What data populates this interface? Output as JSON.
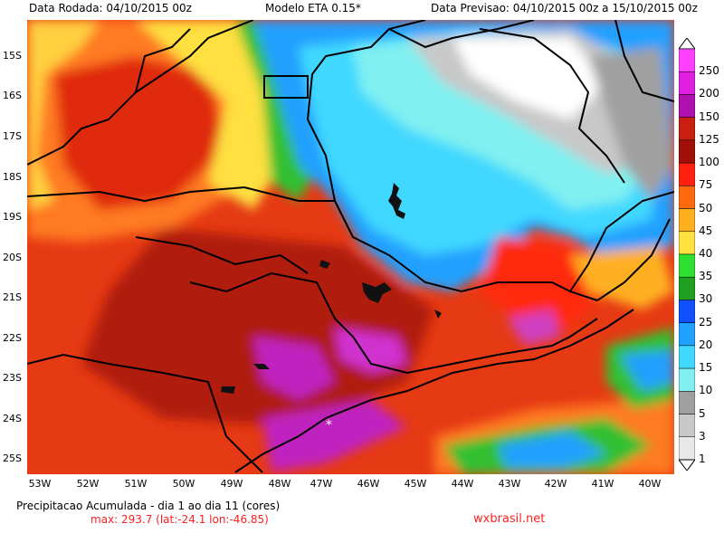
{
  "header": {
    "run_date": "Data Rodada: 04/10/2015 00z",
    "model": "Modelo ETA 0.15*",
    "forecast": "Data Previsao: 04/10/2015 00z a 15/10/2015 00z"
  },
  "footer": {
    "title": "Precipitacao Acumulada - dia 1 ao dia 11 (cores)",
    "max": "max: 293.7 (lat:-24.1 lon:-46.85)",
    "brand": "wxbrasil.net"
  },
  "axes": {
    "lat_labels": [
      "15S",
      "16S",
      "17S",
      "18S",
      "19S",
      "20S",
      "21S",
      "22S",
      "23S",
      "24S",
      "25S"
    ],
    "lon_labels": [
      "53W",
      "52W",
      "51W",
      "50W",
      "49W",
      "48W",
      "47W",
      "46W",
      "45W",
      "44W",
      "43W",
      "42W",
      "41W",
      "40W"
    ]
  },
  "legend": {
    "labels": [
      "250",
      "200",
      "150",
      "125",
      "100",
      "75",
      "50",
      "45",
      "40",
      "35",
      "30",
      "25",
      "20",
      "15",
      "10",
      "5",
      "3",
      "1"
    ],
    "colors": [
      "#ff40ff",
      "#e020e0",
      "#b010b0",
      "#c82010",
      "#a01008",
      "#ff2010",
      "#ff6a10",
      "#ffb020",
      "#ffe040",
      "#30e030",
      "#20a020",
      "#1050ff",
      "#20a0ff",
      "#40d8ff",
      "#80f0f0",
      "#a0a0a0",
      "#c8c8c8",
      "#e8e8e8"
    ]
  },
  "map": {
    "max_marker": "*"
  }
}
